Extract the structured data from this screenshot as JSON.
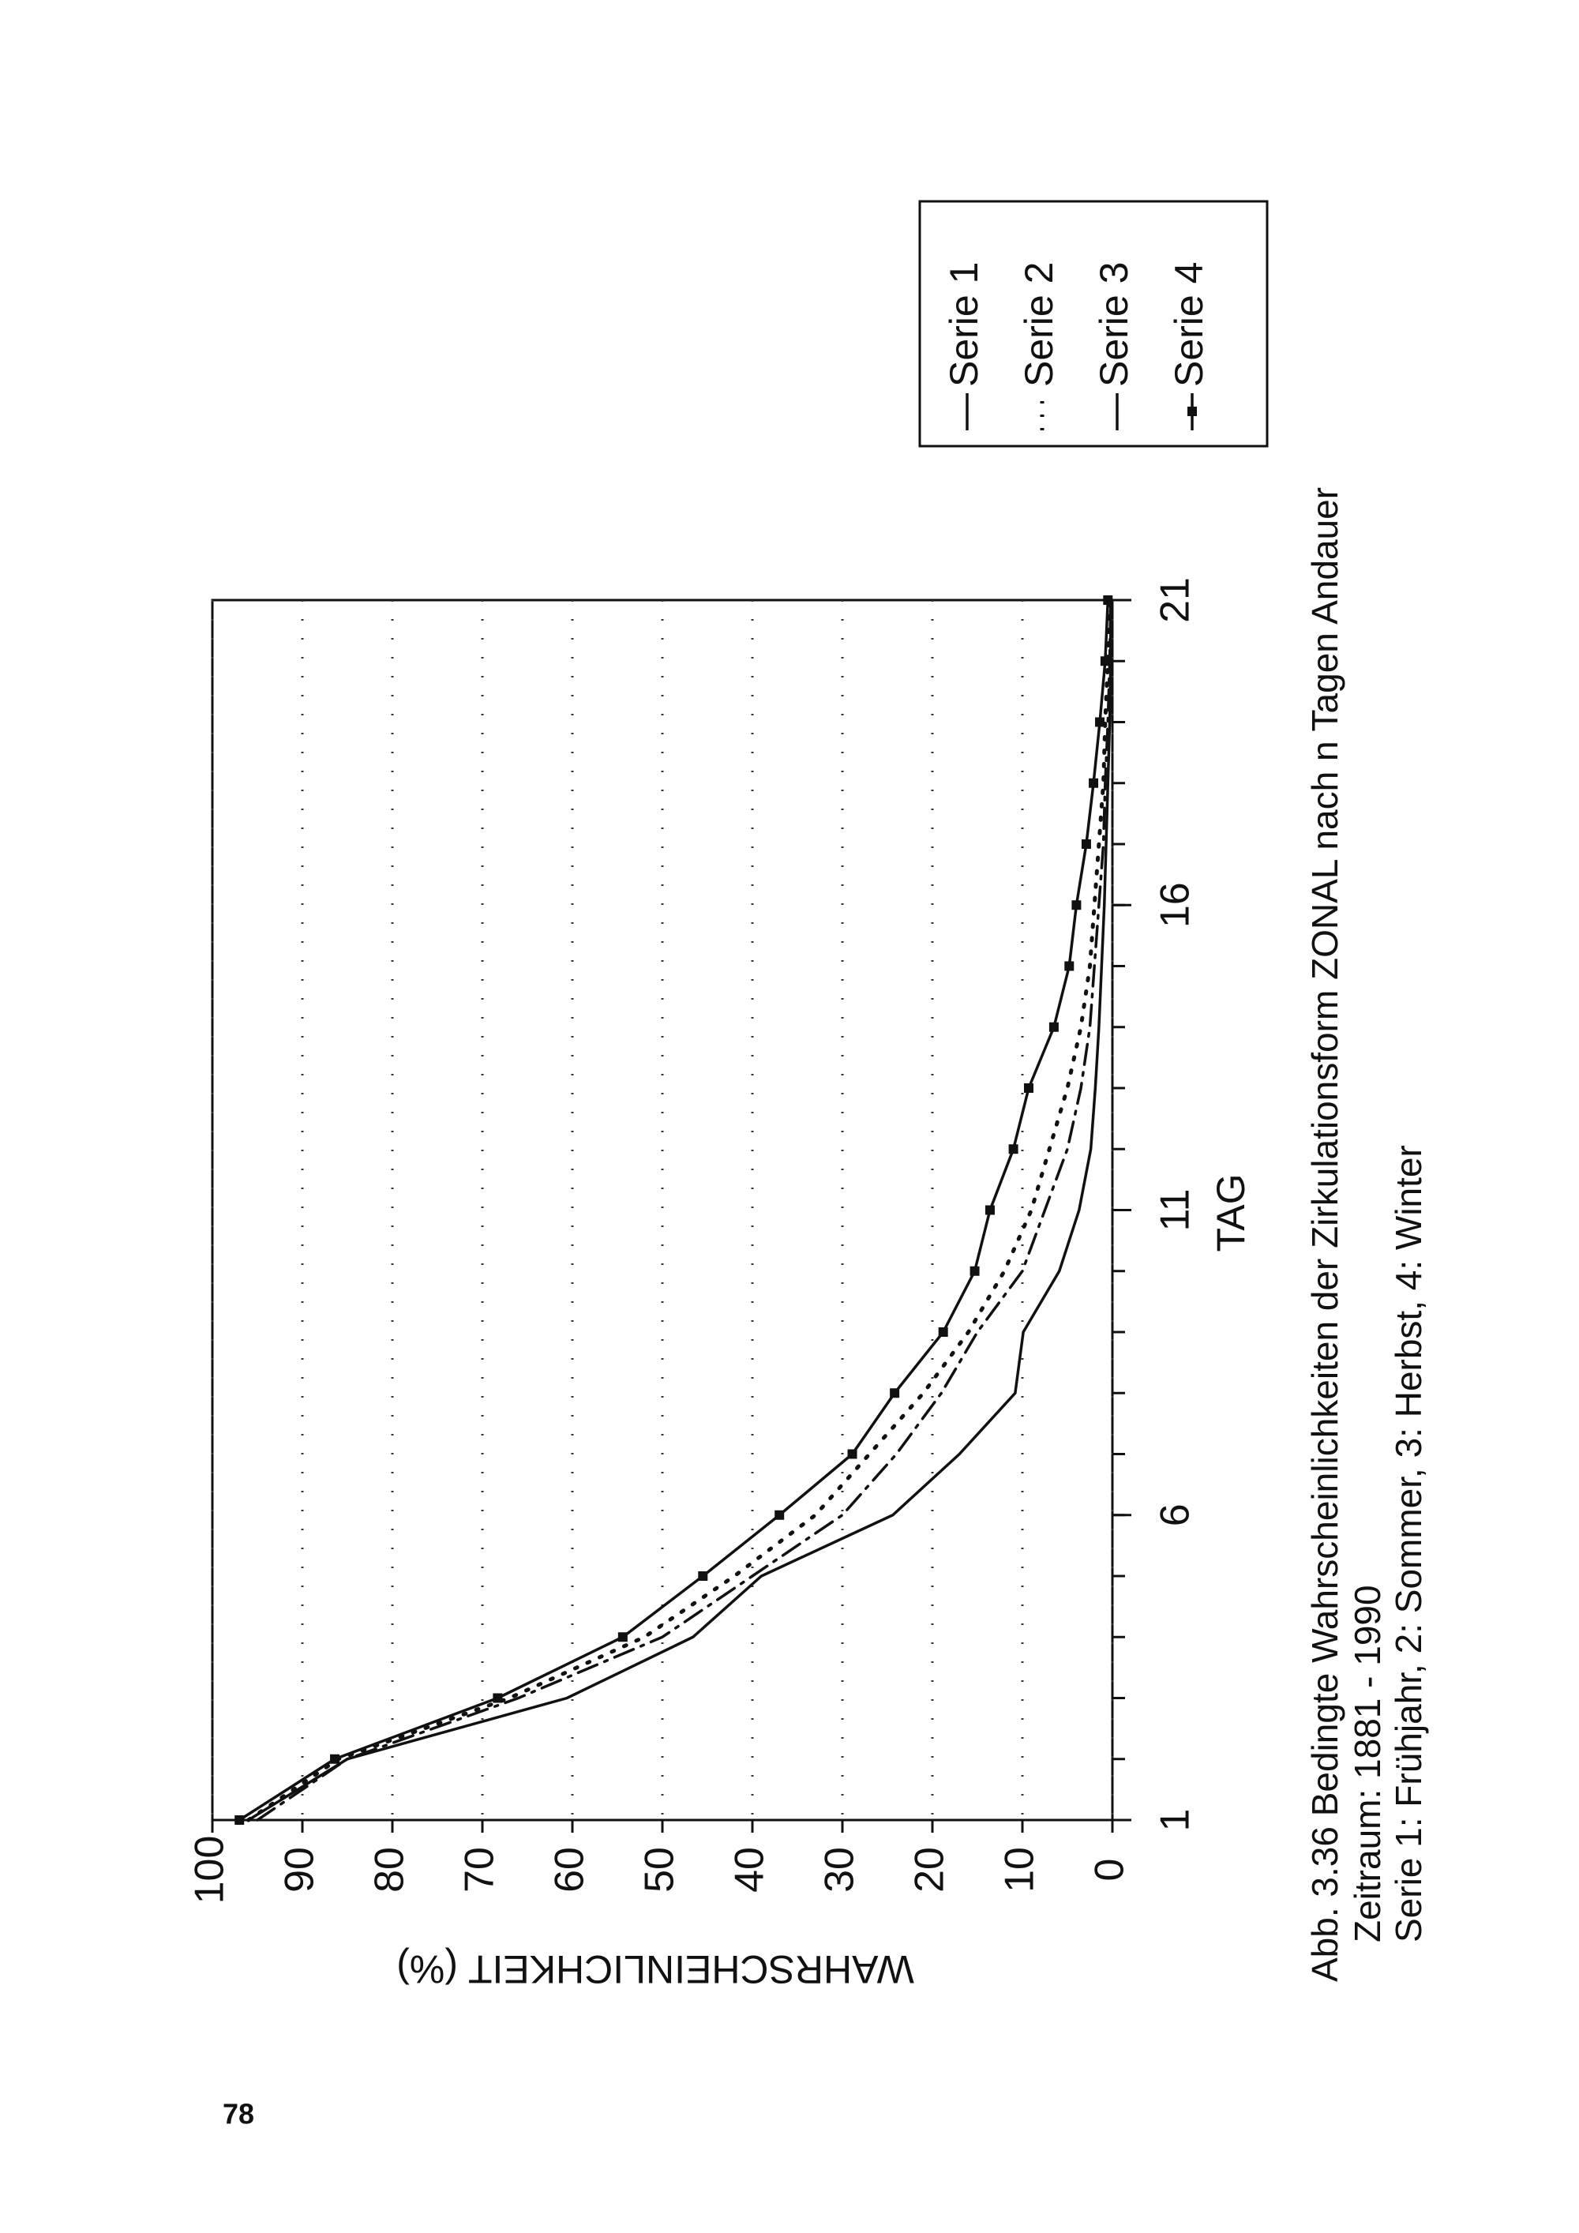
{
  "page_number": "78",
  "caption": [
    "Abb. 3.36 Bedingte Wahrscheinlichkeiten der Zirkulationsform ZONAL nach n Tagen Andauer",
    "Zeitraum: 1881 - 1990",
    "Serie 1: Frühjahr, 2: Sommer, 3: Herbst, 4: Winter"
  ],
  "chart_data": {
    "type": "line",
    "xlabel": "TAG",
    "ylabel": "WAHRSCHEINLICHKEIT (%)",
    "x": [
      1,
      2,
      3,
      4,
      5,
      6,
      7,
      8,
      9,
      10,
      11,
      12,
      13,
      14,
      15,
      16,
      17,
      18,
      19,
      20,
      21
    ],
    "xlim": [
      1,
      21
    ],
    "xticks": [
      1,
      6,
      11,
      16,
      21
    ],
    "xminorticks": [
      1,
      2,
      3,
      4,
      5,
      6,
      7,
      8,
      9,
      10,
      11,
      12,
      13,
      14,
      15,
      16,
      17,
      18,
      19,
      20,
      21
    ],
    "ylim": [
      0,
      100
    ],
    "yticks": [
      0,
      10,
      20,
      30,
      40,
      50,
      60,
      70,
      80,
      90,
      100
    ],
    "grid": true,
    "series": [
      {
        "name": "Serie 1",
        "color": "#111111",
        "style": "solid",
        "values": [
          96,
          85,
          60.6,
          46.6,
          39,
          24.4,
          17,
          10.8,
          9.9,
          5.9,
          3.7,
          2.4,
          1.9,
          1.5,
          1.2,
          0.9,
          0.7,
          0.5,
          0.3,
          0.2,
          0.2
        ]
      },
      {
        "name": "Serie 2",
        "color": "#111111",
        "style": "dotted",
        "values": [
          96,
          86,
          67,
          52,
          42,
          33,
          27,
          21,
          16,
          12,
          9,
          7,
          5,
          3.5,
          2.5,
          2,
          1.5,
          1,
          0.8,
          0.5,
          0.3
        ]
      },
      {
        "name": "Serie 3",
        "color": "#111111",
        "style": "dashdot",
        "values": [
          95,
          85,
          66,
          50,
          40,
          30,
          24,
          19,
          15,
          10,
          7.5,
          5,
          3.5,
          2.5,
          2,
          1.5,
          1,
          0.8,
          0.5,
          0.3,
          0.2
        ]
      },
      {
        "name": "Serie 4",
        "color": "#111111",
        "style": "solid",
        "marker": "square",
        "values": [
          97,
          86.4,
          68.3,
          54.4,
          45.5,
          37,
          28.9,
          24.2,
          18.8,
          15.3,
          13.6,
          11,
          9.3,
          6.5,
          4.8,
          4,
          2.9,
          2.1,
          1.4,
          0.8,
          0.5
        ]
      }
    ]
  }
}
